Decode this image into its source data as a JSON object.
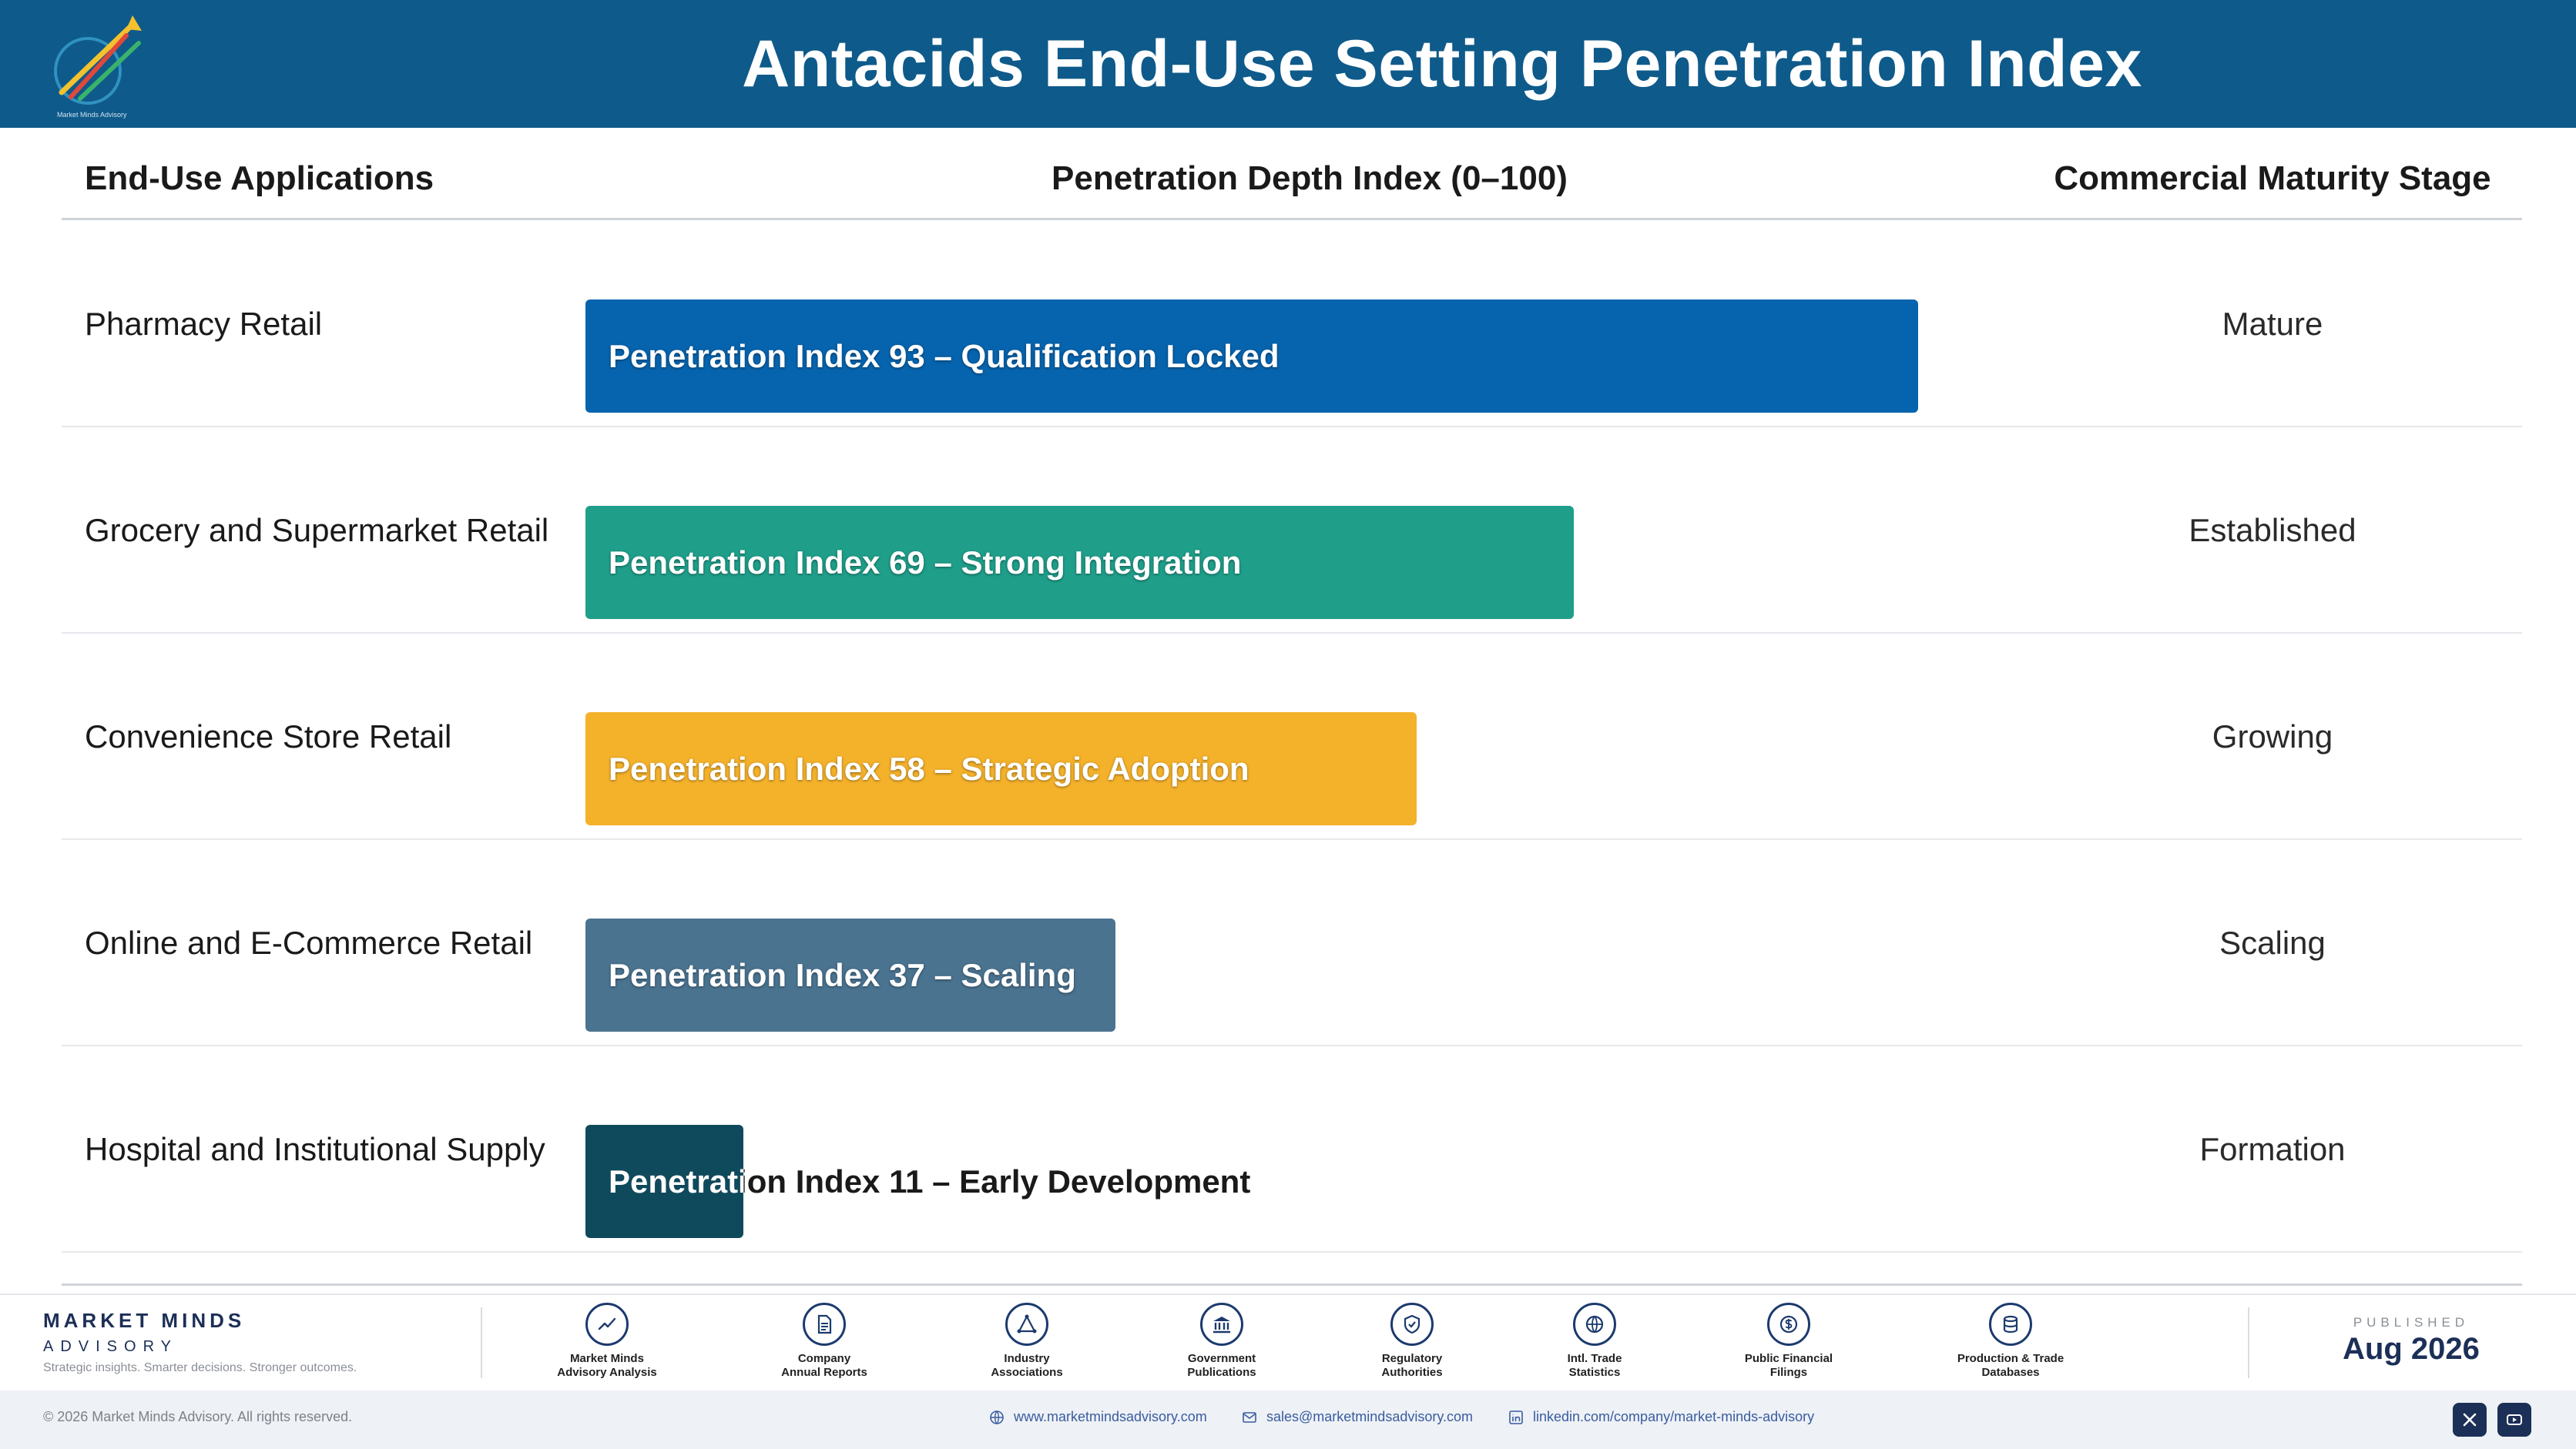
{
  "header": {
    "title": "Antacids End-Use Setting Penetration Index",
    "logo_icon": "market-minds-logo"
  },
  "columns": {
    "apps": "End-Use Applications",
    "depth": "Penetration Depth Index (0–100)",
    "stage": "Commercial Maturity Stage"
  },
  "chart_data": {
    "type": "bar",
    "orientation": "horizontal",
    "title": "Antacids End-Use Setting Penetration Index",
    "xlabel": "Penetration Depth Index (0–100)",
    "xlim": [
      0,
      100
    ],
    "categories": [
      "Pharmacy Retail",
      "Grocery and Supermarket Retail",
      "Convenience Store Retail",
      "Online and E-Commerce Retail",
      "Hospital and Institutional Supply"
    ],
    "values": [
      93,
      69,
      58,
      37,
      11
    ],
    "labels": [
      "Penetration Index 93 – Qualification Locked",
      "Penetration Index 69 – Strong Integration",
      "Penetration Index 58 – Strategic Adoption",
      "Penetration Index 37 – Scaling",
      "Penetration Index 11 – Early Development"
    ],
    "stages": [
      "Mature",
      "Established",
      "Growing",
      "Scaling",
      "Formation"
    ],
    "colors": [
      "#0663ad",
      "#1f9e8a",
      "#f4b12a",
      "#4a7390",
      "#0f4a5c"
    ]
  },
  "footer": {
    "brand_name": "MARKET MINDS",
    "brand_sub": "ADVISORY",
    "tagline": "Strategic insights. Smarter decisions. Stronger outcomes.",
    "sources": [
      {
        "label": "Market Minds\nAdvisory Analysis",
        "icon": "trend-chart-icon"
      },
      {
        "label": "Company\nAnnual Reports",
        "icon": "document-icon"
      },
      {
        "label": "Industry\nAssociations",
        "icon": "network-icon"
      },
      {
        "label": "Government\nPublications",
        "icon": "government-building-icon"
      },
      {
        "label": "Regulatory\nAuthorities",
        "icon": "shield-check-icon"
      },
      {
        "label": "Intl. Trade\nStatistics",
        "icon": "globe-icon"
      },
      {
        "label": "Public Financial\nFilings",
        "icon": "dollar-coin-icon"
      },
      {
        "label": "Production & Trade\nDatabases",
        "icon": "database-icon"
      }
    ],
    "published_label": "PUBLISHED",
    "published_date": "Aug 2026",
    "copyright": "© 2026 Market Minds Advisory. All rights reserved.",
    "website": "www.marketmindsadvisory.com",
    "email": "sales@marketmindsadvisory.com",
    "linkedin": "linkedin.com/company/market-minds-advisory",
    "social": [
      "x-icon",
      "youtube-icon"
    ]
  }
}
